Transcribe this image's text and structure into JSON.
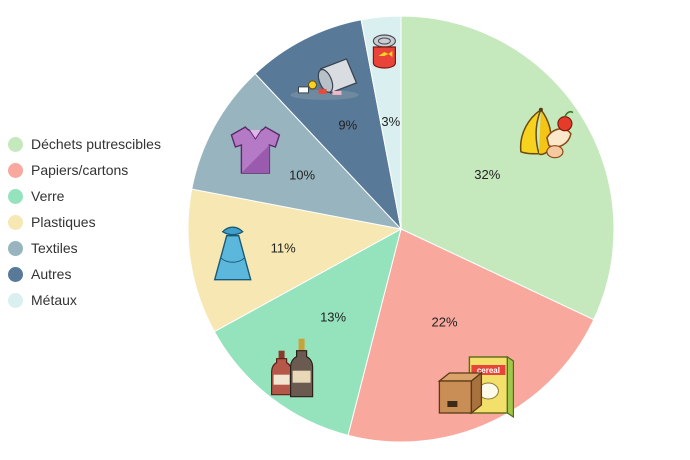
{
  "chart_data": {
    "type": "pie",
    "start_angle": 0,
    "direction": "clockwise",
    "legend_position": "left",
    "slices": [
      {
        "label": "Déchets putrescibles",
        "value": 32,
        "display": "32%",
        "color": "#c6e8bd",
        "icon": "fruit-peel-icon"
      },
      {
        "label": "Papiers/cartons",
        "value": 22,
        "display": "22%",
        "color": "#f8a89d",
        "icon": "cereal-box-and-cardboard-icon"
      },
      {
        "label": "Verre",
        "value": 13,
        "display": "13%",
        "color": "#95e3bd",
        "icon": "glass-bottles-icon"
      },
      {
        "label": "Plastiques",
        "value": 11,
        "display": "11%",
        "color": "#f7e7b2",
        "icon": "plastic-bag-icon"
      },
      {
        "label": "Textiles",
        "value": 10,
        "display": "10%",
        "color": "#98b5bf",
        "icon": "t-shirt-icon"
      },
      {
        "label": "Autres",
        "value": 9,
        "display": "9%",
        "color": "#587a98",
        "icon": "tipped-trash-can-icon"
      },
      {
        "label": "Métaux",
        "value": 3,
        "display": "3%",
        "color": "#daeff0",
        "icon": "tin-can-icon"
      }
    ]
  }
}
